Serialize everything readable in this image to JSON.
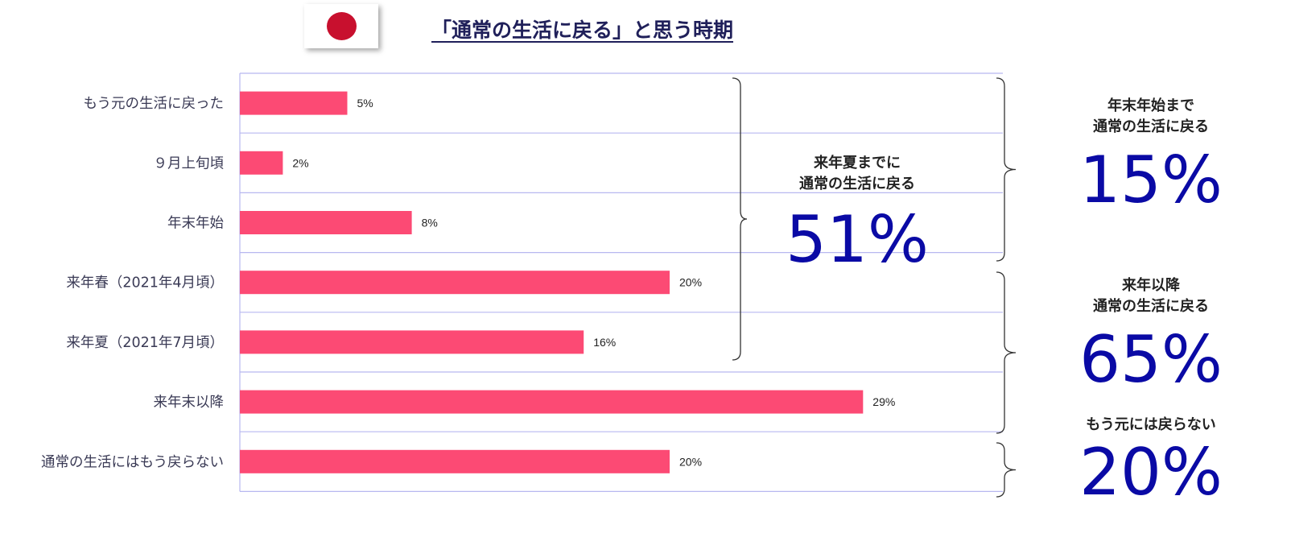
{
  "title": "「通常の生活に戻る」と思う時期",
  "flag": {
    "icon": "japan-flag-icon",
    "disc_color": "#c8102e"
  },
  "chart_data": {
    "type": "bar",
    "orientation": "horizontal",
    "title": "「通常の生活に戻る」と思う時期",
    "categories": [
      "もう元の生活に戻った",
      "９月上旬頃",
      "年末年始",
      "来年春（2021年4月頃）",
      "来年夏（2021年7月頃）",
      "来年末以降",
      "通常の生活にはもう戻らない"
    ],
    "values": [
      5,
      2,
      8,
      20,
      16,
      29,
      20
    ],
    "value_labels": [
      "5%",
      "2%",
      "8%",
      "20%",
      "16%",
      "29%",
      "20%"
    ],
    "unit": "%",
    "xlim": [
      0,
      36
    ],
    "bar_color": "#fc4a74",
    "grid": true,
    "grid_color": "#b8b8f0"
  },
  "summaries": [
    {
      "id": "mid",
      "label_line1": "来年夏までに",
      "label_line2": "通常の生活に戻る",
      "value": "51%"
    },
    {
      "id": "top",
      "label_line1": "年末年始まで",
      "label_line2": "通常の生活に戻る",
      "value": "15%"
    },
    {
      "id": "later",
      "label_line1": "来年以降",
      "label_line2": "通常の生活に戻る",
      "value": "65%"
    },
    {
      "id": "never",
      "label_line1": "もう元には戻らない",
      "label_line2": "",
      "value": "20%"
    }
  ]
}
